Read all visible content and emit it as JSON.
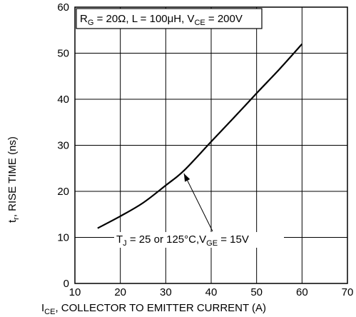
{
  "chart_data": {
    "type": "line",
    "xlabel_main": "I",
    "xlabel_sub": "CE",
    "xlabel_rest": ", COLLECTOR  TO  EMITTER  CURRENT (A)",
    "ylabel_main": "t",
    "ylabel_sub": "r",
    "ylabel_rest": ", RISE TIME (ns)",
    "xlim": [
      10,
      70
    ],
    "ylim": [
      0,
      60
    ],
    "x_ticks": [
      10,
      20,
      30,
      40,
      50,
      60,
      70
    ],
    "y_ticks": [
      0,
      10,
      20,
      30,
      40,
      50,
      60
    ],
    "grid": true,
    "conditions": {
      "r_main": "R",
      "r_sub": "G",
      "r_val": " = 20Ω, L = 100μH, V",
      "v_sub": "CE",
      "v_val": " = 200V"
    },
    "annotation": {
      "t_main": "T",
      "t_sub": "J",
      "t_mid": " = 25 or 125°C,V",
      "v_sub": "GE",
      "v_val": " = 15V",
      "arrow_to": [
        34,
        24.5
      ]
    },
    "series": [
      {
        "x": [
          15,
          20,
          25,
          30,
          34,
          40,
          45,
          50,
          55,
          60
        ],
        "y": [
          12,
          14.6,
          17.5,
          21.3,
          24.5,
          30.8,
          36.0,
          41.3,
          46.5,
          52.0
        ]
      }
    ]
  }
}
